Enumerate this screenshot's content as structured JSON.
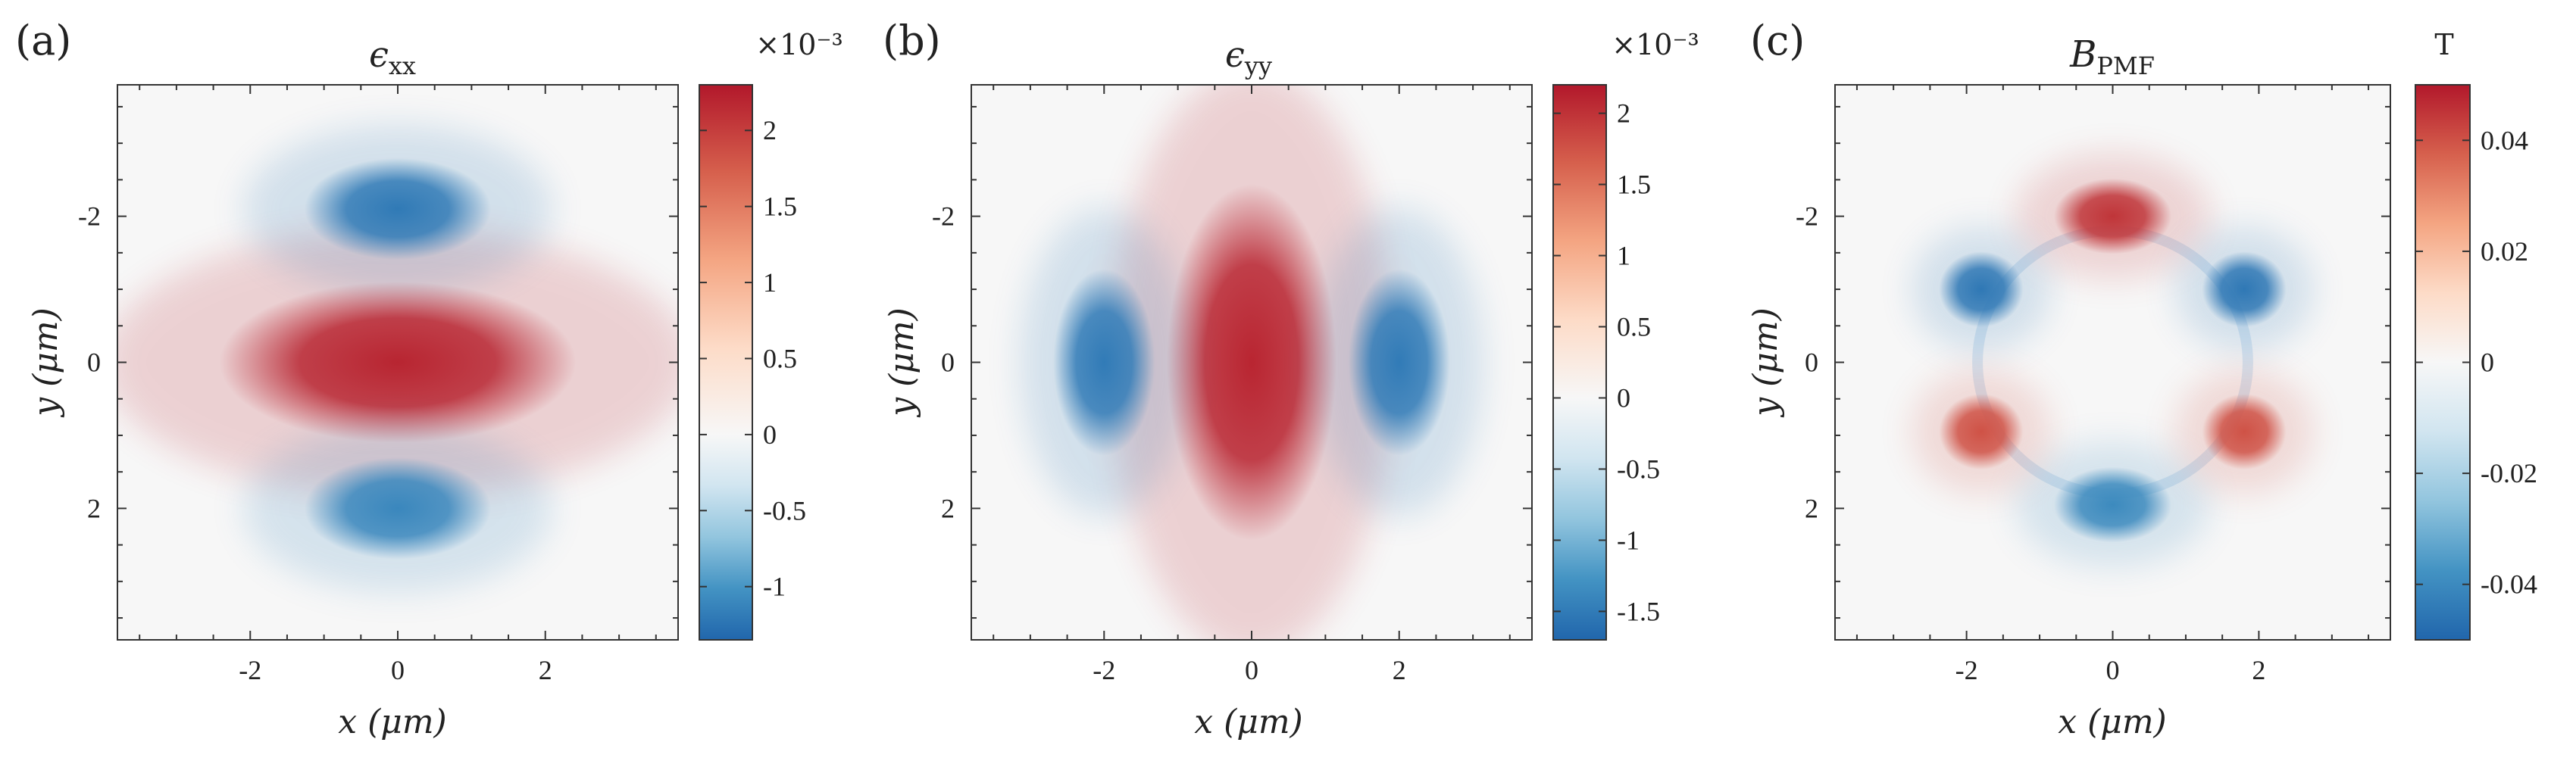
{
  "figure": {
    "colormap": {
      "name": "RdBu_r",
      "stops": [
        "#2166ac",
        "#4393c3",
        "#92c5de",
        "#d1e5f0",
        "#f7f7f7",
        "#fddbc7",
        "#f4a582",
        "#d6604d",
        "#b2182b"
      ]
    },
    "xlabel": "x (μm)",
    "ylabel": "y (μm)",
    "axis_ticks": [
      "-2",
      "0",
      "2"
    ]
  },
  "chart_data": [
    {
      "type": "heatmap",
      "panel_label": "(a)",
      "title": "ϵxx",
      "title_main": "ϵ",
      "title_sub": "xx",
      "x_range": [
        -3.8,
        3.8
      ],
      "y_range": [
        -3.8,
        3.8
      ],
      "y_axis_direction": "top-negative",
      "xticks": [
        -2,
        0,
        2
      ],
      "yticks": [
        -2,
        0,
        2
      ],
      "colorbar": {
        "label": "×10⁻³",
        "range": [
          -1.35,
          2.3
        ],
        "ticks": [
          2,
          1.5,
          1,
          0.5,
          0,
          -0.5,
          -1
        ],
        "tick_labels": [
          "2",
          "1.5",
          "1",
          "0.5",
          "0",
          "-0.5",
          "-1"
        ]
      },
      "features": [
        {
          "shape": "ellipse",
          "x": 0,
          "y": 0,
          "rx": 2.1,
          "ry": 0.95,
          "value": 2.2
        },
        {
          "shape": "lobe",
          "x": 0,
          "y": -2.1,
          "rx": 1.1,
          "ry": 0.6,
          "value": -1.2
        },
        {
          "shape": "lobe",
          "x": 0,
          "y": 2.0,
          "rx": 1.1,
          "ry": 0.6,
          "value": -1.1
        }
      ]
    },
    {
      "type": "heatmap",
      "panel_label": "(b)",
      "title": "ϵyy",
      "title_main": "ϵ",
      "title_sub": "yy",
      "x_range": [
        -3.8,
        3.8
      ],
      "y_range": [
        -3.8,
        3.8
      ],
      "y_axis_direction": "top-negative",
      "xticks": [
        -2,
        0,
        2
      ],
      "yticks": [
        -2,
        0,
        2
      ],
      "colorbar": {
        "label": "×10⁻³",
        "range": [
          -1.7,
          2.2
        ],
        "ticks": [
          2,
          1.5,
          1,
          0.5,
          0,
          -0.5,
          -1,
          -1.5
        ],
        "tick_labels": [
          "2",
          "1.5",
          "1",
          "0.5",
          "0",
          "-0.5",
          "-1",
          "-1.5"
        ]
      },
      "features": [
        {
          "shape": "ellipse",
          "x": 0,
          "y": 0,
          "rx": 1.0,
          "ry": 2.1,
          "value": 2.1
        },
        {
          "shape": "lobe",
          "x": -2.0,
          "y": 0,
          "rx": 0.6,
          "ry": 1.1,
          "value": -1.5
        },
        {
          "shape": "lobe",
          "x": 2.0,
          "y": 0,
          "rx": 0.6,
          "ry": 1.1,
          "value": -1.5
        }
      ]
    },
    {
      "type": "heatmap",
      "panel_label": "(c)",
      "title": "BPMF",
      "title_main": "B",
      "title_sub": "PMF",
      "x_range": [
        -3.8,
        3.8
      ],
      "y_range": [
        -3.8,
        3.8
      ],
      "y_axis_direction": "top-negative",
      "xticks": [
        -2,
        0,
        2
      ],
      "yticks": [
        -2,
        0,
        2
      ],
      "colorbar": {
        "label": "T",
        "range": [
          -0.05,
          0.05
        ],
        "ticks": [
          0.04,
          0.02,
          0,
          -0.02,
          -0.04
        ],
        "tick_labels": [
          "0.04",
          "0.02",
          "0",
          "-0.02",
          "-0.04"
        ]
      },
      "features": [
        {
          "shape": "ring",
          "x": 0,
          "y": 0,
          "rx": 1.85,
          "ry": 1.8,
          "value": 0
        },
        {
          "shape": "lobe",
          "x": 0,
          "y": -2.0,
          "rx": 0.7,
          "ry": 0.45,
          "value": 0.045
        },
        {
          "shape": "lobe",
          "x": 0,
          "y": 1.95,
          "rx": 0.7,
          "ry": 0.45,
          "value": -0.04
        },
        {
          "shape": "lobe",
          "x": -1.8,
          "y": -1.0,
          "rx": 0.5,
          "ry": 0.45,
          "value": -0.045
        },
        {
          "shape": "lobe",
          "x": 1.8,
          "y": -1.0,
          "rx": 0.5,
          "ry": 0.45,
          "value": -0.045
        },
        {
          "shape": "lobe",
          "x": -1.8,
          "y": 0.95,
          "rx": 0.5,
          "ry": 0.45,
          "value": 0.04
        },
        {
          "shape": "lobe",
          "x": 1.8,
          "y": 0.95,
          "rx": 0.5,
          "ry": 0.45,
          "value": 0.04
        }
      ]
    }
  ]
}
